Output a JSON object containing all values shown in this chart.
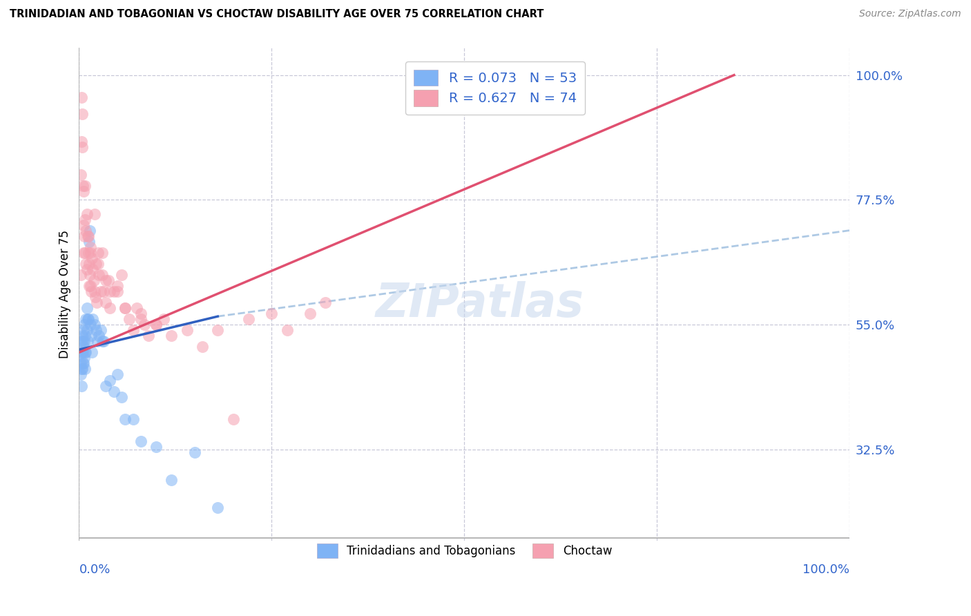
{
  "title": "TRINIDADIAN AND TOBAGONIAN VS CHOCTAW DISABILITY AGE OVER 75 CORRELATION CHART",
  "source": "Source: ZipAtlas.com",
  "ylabel": "Disability Age Over 75",
  "ytick_labels": [
    "100.0%",
    "77.5%",
    "55.0%",
    "32.5%"
  ],
  "ytick_values": [
    1.0,
    0.775,
    0.55,
    0.325
  ],
  "xlim": [
    0.0,
    1.0
  ],
  "ylim": [
    0.16,
    1.05
  ],
  "legend_r1": "R = 0.073   N = 53",
  "legend_r2": "R = 0.627   N = 74",
  "color_blue": "#7FB3F5",
  "color_pink": "#F5A0B0",
  "color_blue_line": "#3060C0",
  "color_pink_line": "#E05070",
  "color_dashed_blue": "#A0C0E0",
  "watermark_text": "ZIPatlas",
  "blue_x": [
    0.002,
    0.002,
    0.003,
    0.003,
    0.003,
    0.003,
    0.004,
    0.004,
    0.004,
    0.005,
    0.005,
    0.005,
    0.006,
    0.006,
    0.006,
    0.007,
    0.007,
    0.007,
    0.008,
    0.008,
    0.008,
    0.009,
    0.009,
    0.01,
    0.01,
    0.011,
    0.011,
    0.012,
    0.013,
    0.014,
    0.015,
    0.016,
    0.017,
    0.018,
    0.02,
    0.022,
    0.024,
    0.026,
    0.028,
    0.03,
    0.032,
    0.035,
    0.04,
    0.045,
    0.05,
    0.055,
    0.06,
    0.07,
    0.08,
    0.1,
    0.12,
    0.15,
    0.18
  ],
  "blue_y": [
    0.48,
    0.46,
    0.52,
    0.5,
    0.47,
    0.44,
    0.53,
    0.5,
    0.47,
    0.52,
    0.5,
    0.48,
    0.54,
    0.51,
    0.48,
    0.55,
    0.52,
    0.49,
    0.53,
    0.5,
    0.47,
    0.56,
    0.5,
    0.58,
    0.54,
    0.56,
    0.52,
    0.56,
    0.7,
    0.72,
    0.55,
    0.53,
    0.5,
    0.56,
    0.55,
    0.54,
    0.52,
    0.53,
    0.54,
    0.52,
    0.52,
    0.44,
    0.45,
    0.43,
    0.46,
    0.42,
    0.38,
    0.38,
    0.34,
    0.33,
    0.27,
    0.32,
    0.22
  ],
  "pink_x": [
    0.002,
    0.003,
    0.004,
    0.005,
    0.006,
    0.006,
    0.007,
    0.008,
    0.008,
    0.009,
    0.01,
    0.01,
    0.011,
    0.012,
    0.013,
    0.013,
    0.014,
    0.015,
    0.015,
    0.016,
    0.017,
    0.018,
    0.019,
    0.02,
    0.021,
    0.022,
    0.023,
    0.025,
    0.026,
    0.028,
    0.03,
    0.032,
    0.035,
    0.038,
    0.04,
    0.045,
    0.05,
    0.055,
    0.06,
    0.065,
    0.07,
    0.075,
    0.08,
    0.085,
    0.09,
    0.1,
    0.11,
    0.12,
    0.14,
    0.16,
    0.18,
    0.2,
    0.22,
    0.25,
    0.27,
    0.3,
    0.32,
    0.02,
    0.03,
    0.05,
    0.008,
    0.012,
    0.025,
    0.035,
    0.06,
    0.08,
    0.1,
    0.002,
    0.003,
    0.004,
    0.006,
    0.009,
    0.015,
    0.04
  ],
  "pink_y": [
    0.64,
    0.96,
    0.93,
    0.8,
    0.73,
    0.68,
    0.71,
    0.8,
    0.68,
    0.66,
    0.75,
    0.65,
    0.71,
    0.68,
    0.66,
    0.62,
    0.64,
    0.69,
    0.62,
    0.61,
    0.67,
    0.65,
    0.63,
    0.61,
    0.6,
    0.66,
    0.59,
    0.66,
    0.64,
    0.61,
    0.64,
    0.61,
    0.59,
    0.63,
    0.58,
    0.61,
    0.61,
    0.64,
    0.58,
    0.56,
    0.54,
    0.58,
    0.57,
    0.55,
    0.53,
    0.55,
    0.56,
    0.53,
    0.54,
    0.51,
    0.54,
    0.38,
    0.56,
    0.57,
    0.54,
    0.57,
    0.59,
    0.75,
    0.68,
    0.62,
    0.74,
    0.71,
    0.68,
    0.63,
    0.58,
    0.56,
    0.55,
    0.82,
    0.88,
    0.87,
    0.79,
    0.72,
    0.68,
    0.61
  ],
  "blue_line_x": [
    0.0,
    0.18
  ],
  "blue_line_y": [
    0.505,
    0.565
  ],
  "dashed_line_x": [
    0.18,
    1.0
  ],
  "dashed_line_y": [
    0.565,
    0.72
  ],
  "pink_line_x": [
    0.0,
    0.85
  ],
  "pink_line_y": [
    0.5,
    1.0
  ],
  "grid_xticks": [
    0.0,
    0.25,
    0.5,
    0.75,
    1.0
  ],
  "grid_color": "#C8C8D8",
  "bottom_axis_line_y": 0.165
}
